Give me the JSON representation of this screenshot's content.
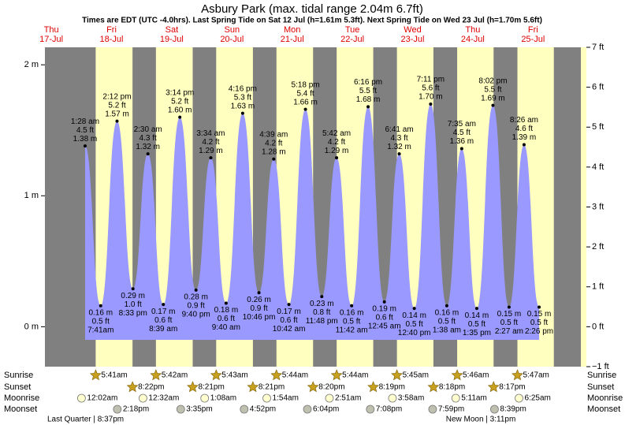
{
  "chart_data": {
    "type": "area",
    "title": "Asbury Park (max. tidal range 2.04m 6.7ft)",
    "subtitle": "Times are EDT (UTC -4.0hrs). Last Spring Tide on Sat 12 Jul (h=1.61m 5.3ft). Next Spring Tide on Wed 23 Jul (h=1.70m 5.6ft)",
    "color": "#9999ff",
    "ylim": [
      -0.3048,
      2.1336
    ],
    "yticks": [
      {
        "value": 0,
        "label": "0 m"
      },
      {
        "value": 1,
        "label": "1 m"
      },
      {
        "value": 2,
        "label": "2 m"
      }
    ],
    "y2lim": [
      -1,
      7
    ],
    "y2ticks": [
      {
        "value": -1,
        "label": "−1 ft"
      },
      {
        "value": 0,
        "label": "0 ft"
      },
      {
        "value": 1,
        "label": "1 ft"
      },
      {
        "value": 2,
        "label": "2 ft"
      },
      {
        "value": 3,
        "label": "3 ft"
      },
      {
        "value": 4,
        "label": "4 ft"
      },
      {
        "value": 5,
        "label": "5 ft"
      },
      {
        "value": 6,
        "label": "6 ft"
      },
      {
        "value": 7,
        "label": "7 ft"
      }
    ],
    "row_labels": {
      "sunrise": "Sunrise",
      "sunset": "Sunset",
      "moonrise": "Moonrise",
      "moonset": "Moonset"
    },
    "days": [
      {
        "weekday": "Thu",
        "date": "17-Jul",
        "tides": [],
        "moon_phase": "Last Quarter | 8:37pm"
      },
      {
        "weekday": "Fri",
        "date": "18-Jul",
        "sunrise": "5:41am",
        "sunset": "8:22pm",
        "moonrise": "12:02am",
        "moonset": "2:18pm",
        "tides": [
          {
            "time": "1:28 am",
            "ft": 4.5,
            "ft_label": "4.5 ft",
            "m": 1.38,
            "m_label": "1.38 m"
          },
          {
            "time": "7:41am",
            "ft": 0.5,
            "ft_label": "0.5 ft",
            "m": 0.16,
            "m_label": "0.16 m"
          },
          {
            "time": "2:12 pm",
            "ft": 5.2,
            "ft_label": "5.2 ft",
            "m": 1.57,
            "m_label": "1.57 m"
          },
          {
            "time": "8:33 pm",
            "ft": 1.0,
            "ft_label": "1.0 ft",
            "m": 0.29,
            "m_label": "0.29 m"
          }
        ]
      },
      {
        "weekday": "Sat",
        "date": "19-Jul",
        "sunrise": "5:42am",
        "sunset": "8:21pm",
        "moonrise": "12:32am",
        "moonset": "3:35pm",
        "tides": [
          {
            "time": "2:30 am",
            "ft": 4.3,
            "ft_label": "4.3 ft",
            "m": 1.32,
            "m_label": "1.32 m"
          },
          {
            "time": "8:39 am",
            "ft": 0.6,
            "ft_label": "0.6 ft",
            "m": 0.17,
            "m_label": "0.17 m"
          },
          {
            "time": "3:14 pm",
            "ft": 5.2,
            "ft_label": "5.2 ft",
            "m": 1.6,
            "m_label": "1.60 m"
          },
          {
            "time": "9:40 pm",
            "ft": 0.9,
            "ft_label": "0.9 ft",
            "m": 0.28,
            "m_label": "0.28 m"
          }
        ]
      },
      {
        "weekday": "Sun",
        "date": "20-Jul",
        "sunrise": "5:43am",
        "sunset": "8:21pm",
        "moonrise": "1:08am",
        "moonset": "4:52pm",
        "tides": [
          {
            "time": "3:34 am",
            "ft": 4.2,
            "ft_label": "4.2 ft",
            "m": 1.29,
            "m_label": "1.29 m"
          },
          {
            "time": "9:40 am",
            "ft": 0.6,
            "ft_label": "0.6 ft",
            "m": 0.18,
            "m_label": "0.18 m"
          },
          {
            "time": "4:16 pm",
            "ft": 5.3,
            "ft_label": "5.3 ft",
            "m": 1.63,
            "m_label": "1.63 m"
          },
          {
            "time": "10:46 pm",
            "ft": 0.9,
            "ft_label": "0.9 ft",
            "m": 0.26,
            "m_label": "0.26 m"
          }
        ]
      },
      {
        "weekday": "Mon",
        "date": "21-Jul",
        "sunrise": "5:44am",
        "sunset": "8:20pm",
        "moonrise": "1:54am",
        "moonset": "6:04pm",
        "tides": [
          {
            "time": "4:39 am",
            "ft": 4.2,
            "ft_label": "4.2 ft",
            "m": 1.28,
            "m_label": "1.28 m"
          },
          {
            "time": "10:42 am",
            "ft": 0.6,
            "ft_label": "0.6 ft",
            "m": 0.17,
            "m_label": "0.17 m"
          },
          {
            "time": "5:18 pm",
            "ft": 5.4,
            "ft_label": "5.4 ft",
            "m": 1.66,
            "m_label": "1.66 m"
          },
          {
            "time": "11:48 pm",
            "ft": 0.8,
            "ft_label": "0.8 ft",
            "m": 0.23,
            "m_label": "0.23 m"
          }
        ]
      },
      {
        "weekday": "Tue",
        "date": "22-Jul",
        "sunrise": "5:44am",
        "sunset": "8:19pm",
        "moonrise": "2:51am",
        "moonset": "7:08pm",
        "tides": [
          {
            "time": "5:42 am",
            "ft": 4.2,
            "ft_label": "4.2 ft",
            "m": 1.29,
            "m_label": "1.29 m"
          },
          {
            "time": "11:42 am",
            "ft": 0.5,
            "ft_label": "0.5 ft",
            "m": 0.16,
            "m_label": "0.16 m"
          },
          {
            "time": "6:16 pm",
            "ft": 5.5,
            "ft_label": "5.5 ft",
            "m": 1.68,
            "m_label": "1.68 m"
          }
        ]
      },
      {
        "weekday": "Wed",
        "date": "23-Jul",
        "sunrise": "5:45am",
        "sunset": "8:18pm",
        "moonrise": "3:58am",
        "moonset": "7:59pm",
        "tides": [
          {
            "time": "12:45 am",
            "ft": 0.6,
            "ft_label": "0.6 ft",
            "m": 0.19,
            "m_label": "0.19 m"
          },
          {
            "time": "6:41 am",
            "ft": 4.3,
            "ft_label": "4.3 ft",
            "m": 1.32,
            "m_label": "1.32 m"
          },
          {
            "time": "12:40 pm",
            "ft": 0.5,
            "ft_label": "0.5 ft",
            "m": 0.14,
            "m_label": "0.14 m"
          },
          {
            "time": "7:11 pm",
            "ft": 5.6,
            "ft_label": "5.6 ft",
            "m": 1.7,
            "m_label": "1.70 m"
          }
        ]
      },
      {
        "weekday": "Thu",
        "date": "24-Jul",
        "sunrise": "5:46am",
        "sunset": "8:17pm",
        "moonrise": "5:11am",
        "moonset": "8:39pm",
        "moon_phase": "New Moon | 3:11pm",
        "tides": [
          {
            "time": "1:38 am",
            "ft": 0.5,
            "ft_label": "0.5 ft",
            "m": 0.16,
            "m_label": "0.16 m"
          },
          {
            "time": "7:35 am",
            "ft": 4.5,
            "ft_label": "4.5 ft",
            "m": 1.36,
            "m_label": "1.36 m"
          },
          {
            "time": "1:35 pm",
            "ft": 0.5,
            "ft_label": "0.5 ft",
            "m": 0.14,
            "m_label": "0.14 m"
          },
          {
            "time": "8:02 pm",
            "ft": 5.5,
            "ft_label": "5.5 ft",
            "m": 1.69,
            "m_label": "1.69 m"
          }
        ]
      },
      {
        "weekday": "Fri",
        "date": "25-Jul",
        "sunrise": "5:47am",
        "moonrise": "6:25am",
        "tides": [
          {
            "time": "2:27 am",
            "ft": 0.5,
            "ft_label": "0.5 ft",
            "m": 0.15,
            "m_label": "0.15 m"
          },
          {
            "time": "8:26 am",
            "ft": 4.6,
            "ft_label": "4.6 ft",
            "m": 1.39,
            "m_label": "1.39 m"
          },
          {
            "time": "2:26 pm",
            "ft": 0.5,
            "ft_label": "0.5 ft",
            "m": 0.15,
            "m_label": "0.15 m"
          }
        ]
      }
    ]
  }
}
